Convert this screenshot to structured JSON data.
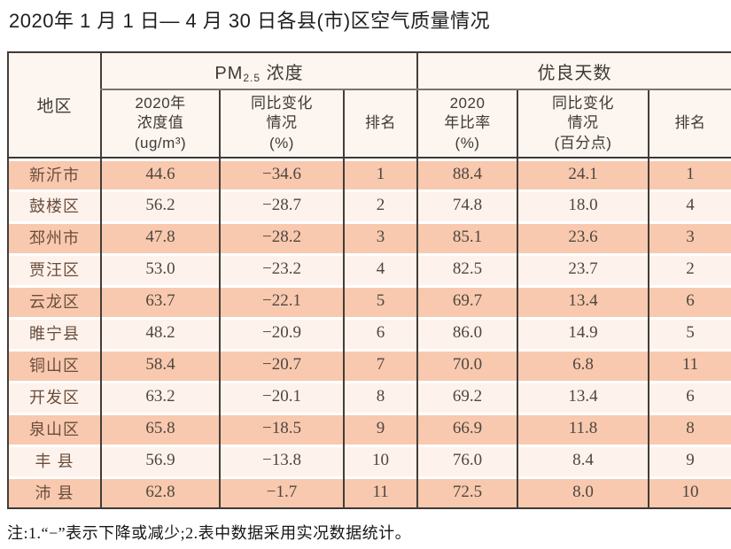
{
  "page": {
    "title": "2020年 1 月 1 日— 4 月 30 日各县(市)区空气质量情况",
    "footnote": "注:1.“−”表示下降或减少;2.表中数据采用实况数据统计。"
  },
  "labels": {
    "region": "地区",
    "pm25_group_main": "PM",
    "pm25_group_sub": "2.5",
    "pm25_group_rest": " 浓度",
    "good_days_group": "优良天数",
    "pm25_value_header": "2020年\n浓度值\n(ug/m³)",
    "pm25_change_header": "同比变化\n情况\n(%)",
    "pm25_rank_header": "排名",
    "good_ratio_header": "2020\n年比率\n(%)",
    "good_change_header": "同比变化\n情况\n(百分点)",
    "good_rank_header": "排名"
  },
  "chart_data": {
    "type": "table",
    "title": "2020年1月1日—4月30日各县(市)区空气质量情况",
    "column_groups": [
      "地区",
      "PM2.5浓度",
      "优良天数"
    ],
    "columns": [
      "地区",
      "2020年浓度值(ug/m³)",
      "同比变化情况(%)",
      "排名",
      "2020年比率(%)",
      "同比变化情况(百分点)",
      "排名"
    ],
    "rows": [
      {
        "region": "新沂市",
        "pm25_value": "44.6",
        "pm25_change_pct": "−34.6",
        "pm25_rank": "1",
        "good_ratio_pct": "88.4",
        "good_change_points": "24.1",
        "good_rank": "1"
      },
      {
        "region": "鼓楼区",
        "pm25_value": "56.2",
        "pm25_change_pct": "−28.7",
        "pm25_rank": "2",
        "good_ratio_pct": "74.8",
        "good_change_points": "18.0",
        "good_rank": "4"
      },
      {
        "region": "邳州市",
        "pm25_value": "47.8",
        "pm25_change_pct": "−28.2",
        "pm25_rank": "3",
        "good_ratio_pct": "85.1",
        "good_change_points": "23.6",
        "good_rank": "3"
      },
      {
        "region": "贾汪区",
        "pm25_value": "53.0",
        "pm25_change_pct": "−23.2",
        "pm25_rank": "4",
        "good_ratio_pct": "82.5",
        "good_change_points": "23.7",
        "good_rank": "2"
      },
      {
        "region": "云龙区",
        "pm25_value": "63.7",
        "pm25_change_pct": "−22.1",
        "pm25_rank": "5",
        "good_ratio_pct": "69.7",
        "good_change_points": "13.4",
        "good_rank": "6"
      },
      {
        "region": "睢宁县",
        "pm25_value": "48.2",
        "pm25_change_pct": "−20.9",
        "pm25_rank": "6",
        "good_ratio_pct": "86.0",
        "good_change_points": "14.9",
        "good_rank": "5"
      },
      {
        "region": "铜山区",
        "pm25_value": "58.4",
        "pm25_change_pct": "−20.7",
        "pm25_rank": "7",
        "good_ratio_pct": "70.0",
        "good_change_points": "6.8",
        "good_rank": "11"
      },
      {
        "region": "开发区",
        "pm25_value": "63.2",
        "pm25_change_pct": "−20.1",
        "pm25_rank": "8",
        "good_ratio_pct": "69.2",
        "good_change_points": "13.4",
        "good_rank": "6"
      },
      {
        "region": "泉山区",
        "pm25_value": "65.8",
        "pm25_change_pct": "−18.5",
        "pm25_rank": "9",
        "good_ratio_pct": "66.9",
        "good_change_points": "11.8",
        "good_rank": "8"
      },
      {
        "region": "丰 县",
        "pm25_value": "56.9",
        "pm25_change_pct": "−13.8",
        "pm25_rank": "10",
        "good_ratio_pct": "76.0",
        "good_change_points": "8.4",
        "good_rank": "9"
      },
      {
        "region": "沛 县",
        "pm25_value": "62.8",
        "pm25_change_pct": "−1.7",
        "pm25_rank": "11",
        "good_ratio_pct": "72.5",
        "good_change_points": "8.0",
        "good_rank": "10"
      }
    ],
    "footnote": "注:1.“−”表示下降或减少;2.表中数据采用实况数据统计。",
    "layout_hints": {
      "striped": true,
      "grid": "vertical-lines"
    },
    "colors": {
      "row_odd_bg": "#f8c9ae",
      "row_even_bg": "#fdf3ec",
      "header_bg": "#fdf5ef",
      "border_dark": "#3e3835",
      "group_divider": "#7a7472",
      "region_text": "#6a4c3c",
      "data_text": "#4f4640"
    }
  }
}
